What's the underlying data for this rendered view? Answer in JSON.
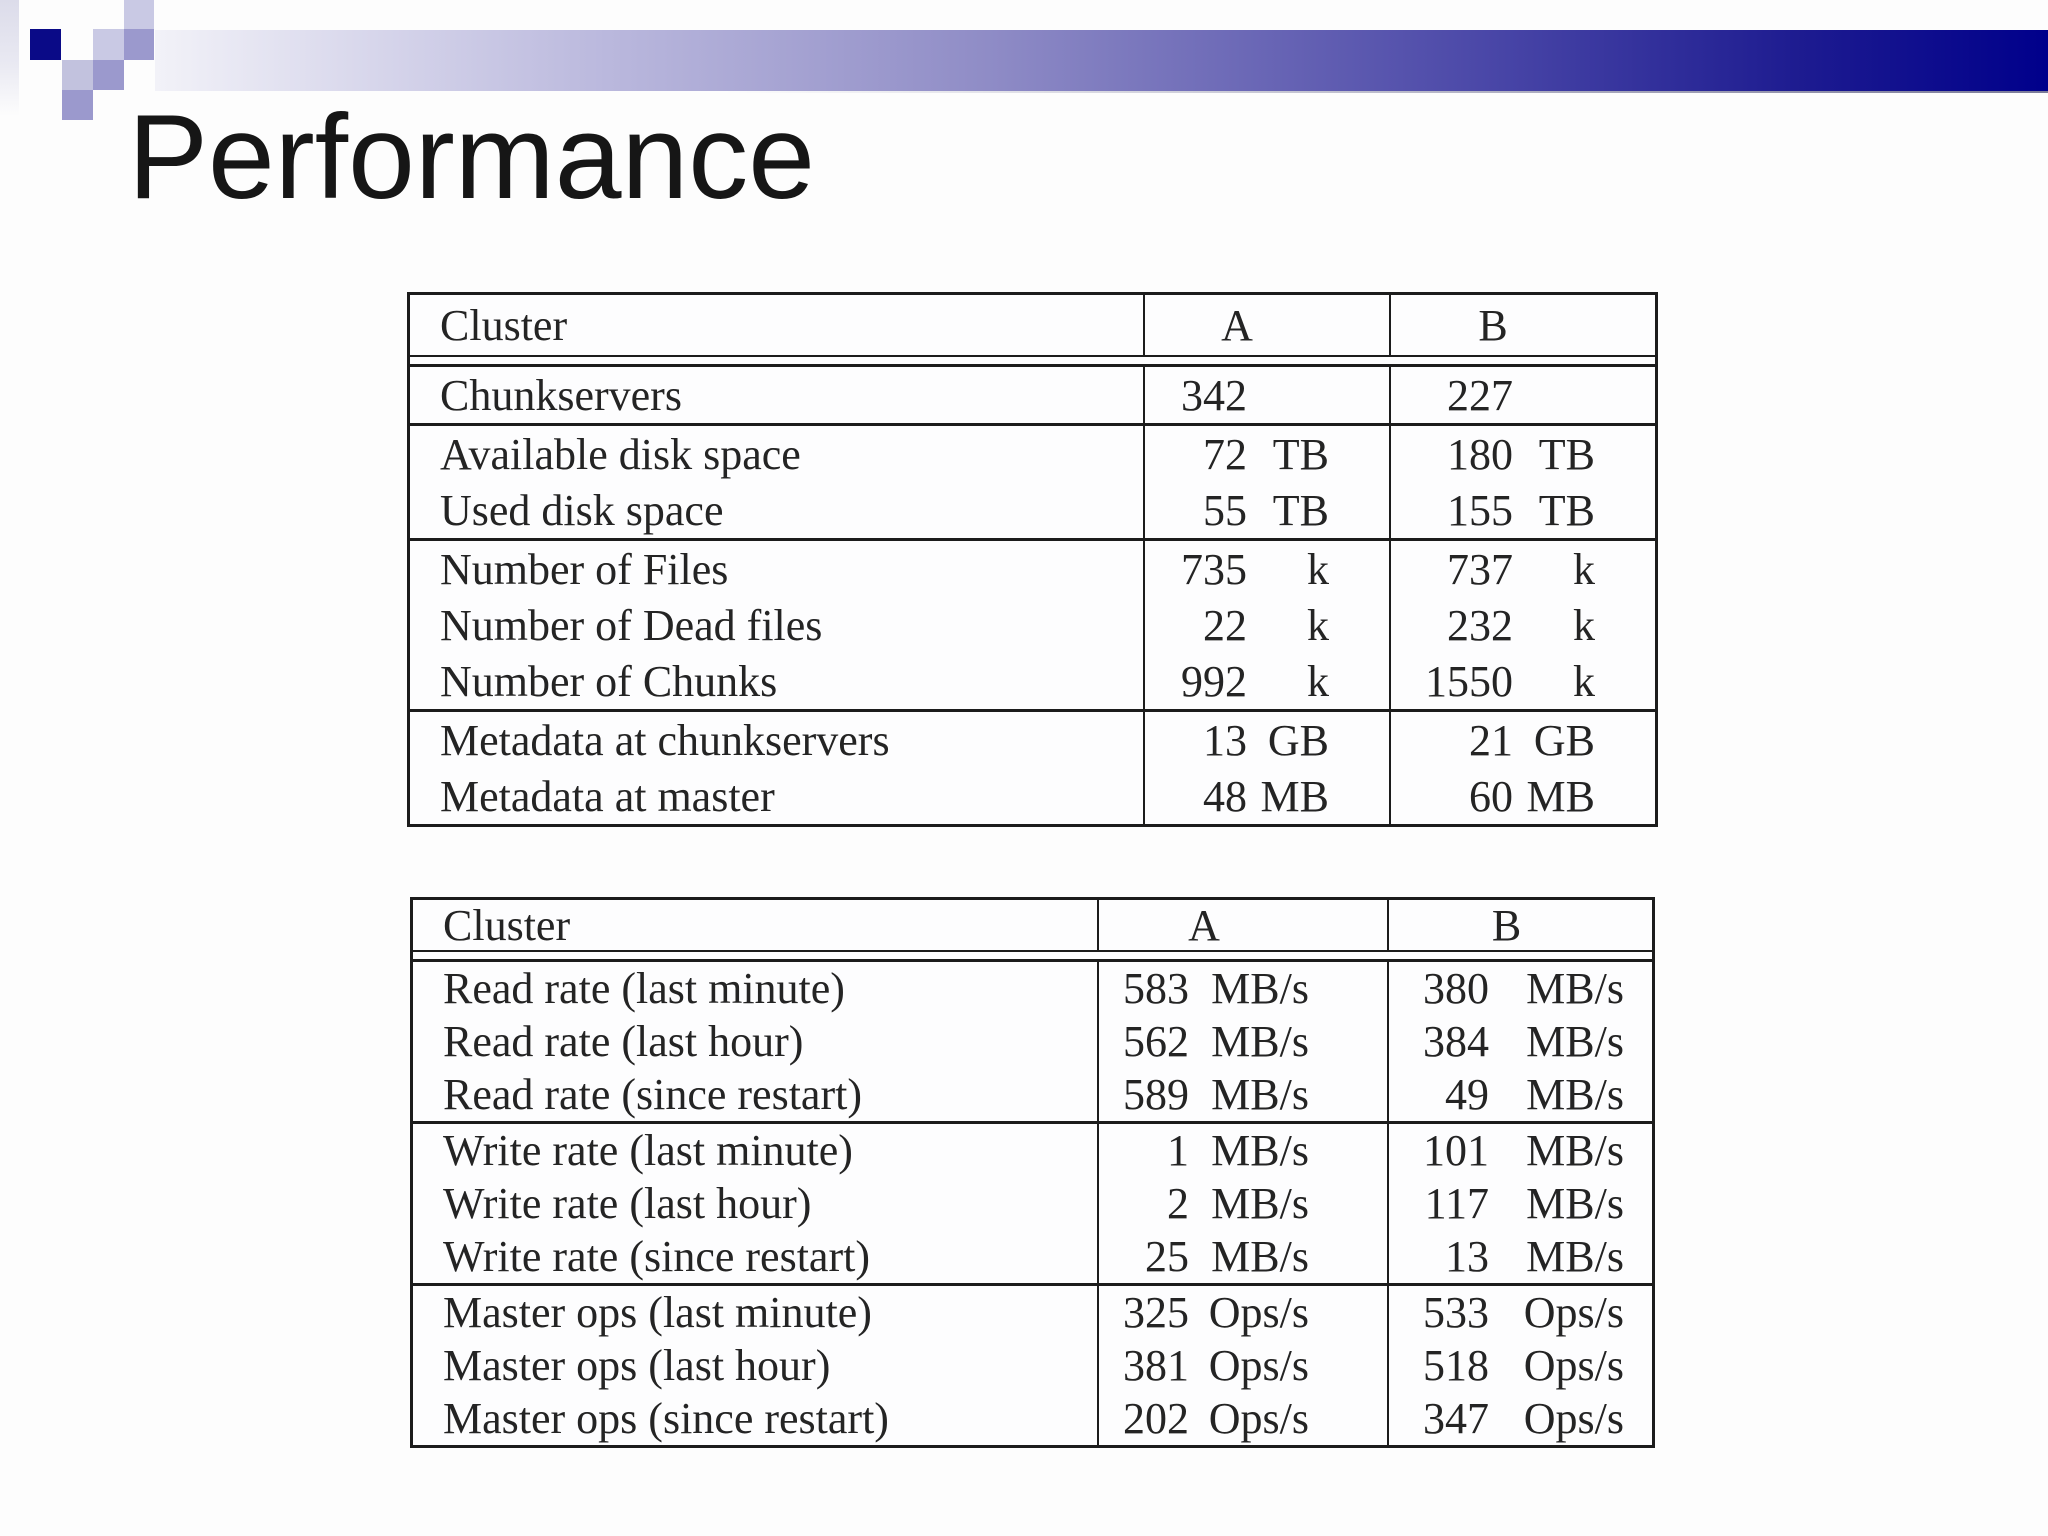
{
  "slide": {
    "title": "Performance"
  },
  "colors": {
    "background": "#fdfdfd",
    "text_color": "#242424",
    "table_border": "#1c1c1c",
    "bar_start": "#f2f2f8",
    "bar_light": "#bcbade",
    "bar_mid": "#8f8cc6",
    "bar_deep": "#4b48a8",
    "bar_end": "#00008b",
    "square_navy": "#0a0a87",
    "square_light": "#c9c9e4",
    "square_medium": "#9b99cd",
    "square_soft": "#c2c2de"
  },
  "tables": [
    {
      "id": "cluster-overview",
      "columns": {
        "label": "Cluster",
        "a": "A",
        "b": "B"
      },
      "groups": [
        {
          "rows": [
            {
              "label": "Chunkservers",
              "a_value": "342",
              "a_unit": "",
              "b_value": "227",
              "b_unit": ""
            }
          ]
        },
        {
          "rows": [
            {
              "label": "Available disk space",
              "a_value": "72",
              "a_unit": "TB",
              "b_value": "180",
              "b_unit": "TB"
            },
            {
              "label": "Used disk space",
              "a_value": "55",
              "a_unit": "TB",
              "b_value": "155",
              "b_unit": "TB"
            }
          ]
        },
        {
          "rows": [
            {
              "label": "Number of Files",
              "a_value": "735",
              "a_unit": "k",
              "b_value": "737",
              "b_unit": "k"
            },
            {
              "label": "Number of Dead files",
              "a_value": "22",
              "a_unit": "k",
              "b_value": "232",
              "b_unit": "k"
            },
            {
              "label": "Number of Chunks",
              "a_value": "992",
              "a_unit": "k",
              "b_value": "1550",
              "b_unit": "k"
            }
          ]
        },
        {
          "rows": [
            {
              "label": "Metadata at chunkservers",
              "a_value": "13",
              "a_unit": "GB",
              "b_value": "21",
              "b_unit": "GB"
            },
            {
              "label": "Metadata at master",
              "a_value": "48",
              "a_unit": "MB",
              "b_value": "60",
              "b_unit": "MB"
            }
          ]
        }
      ]
    },
    {
      "id": "cluster-performance",
      "columns": {
        "label": "Cluster",
        "a": "A",
        "b": "B"
      },
      "groups": [
        {
          "rows": [
            {
              "label": "Read rate (last minute)",
              "a_value": "583",
              "a_unit": "MB/s",
              "b_value": "380",
              "b_unit": "MB/s"
            },
            {
              "label": "Read rate (last hour)",
              "a_value": "562",
              "a_unit": "MB/s",
              "b_value": "384",
              "b_unit": "MB/s"
            },
            {
              "label": "Read rate (since restart)",
              "a_value": "589",
              "a_unit": "MB/s",
              "b_value": "49",
              "b_unit": "MB/s"
            }
          ]
        },
        {
          "rows": [
            {
              "label": "Write rate (last minute)",
              "a_value": "1",
              "a_unit": "MB/s",
              "b_value": "101",
              "b_unit": "MB/s"
            },
            {
              "label": "Write rate (last hour)",
              "a_value": "2",
              "a_unit": "MB/s",
              "b_value": "117",
              "b_unit": "MB/s"
            },
            {
              "label": "Write rate (since restart)",
              "a_value": "25",
              "a_unit": "MB/s",
              "b_value": "13",
              "b_unit": "MB/s"
            }
          ]
        },
        {
          "rows": [
            {
              "label": "Master ops (last minute)",
              "a_value": "325",
              "a_unit": "Ops/s",
              "b_value": "533",
              "b_unit": "Ops/s"
            },
            {
              "label": "Master ops (last hour)",
              "a_value": "381",
              "a_unit": "Ops/s",
              "b_value": "518",
              "b_unit": "Ops/s"
            },
            {
              "label": "Master ops (since restart)",
              "a_value": "202",
              "a_unit": "Ops/s",
              "b_value": "347",
              "b_unit": "Ops/s"
            }
          ]
        }
      ]
    }
  ]
}
